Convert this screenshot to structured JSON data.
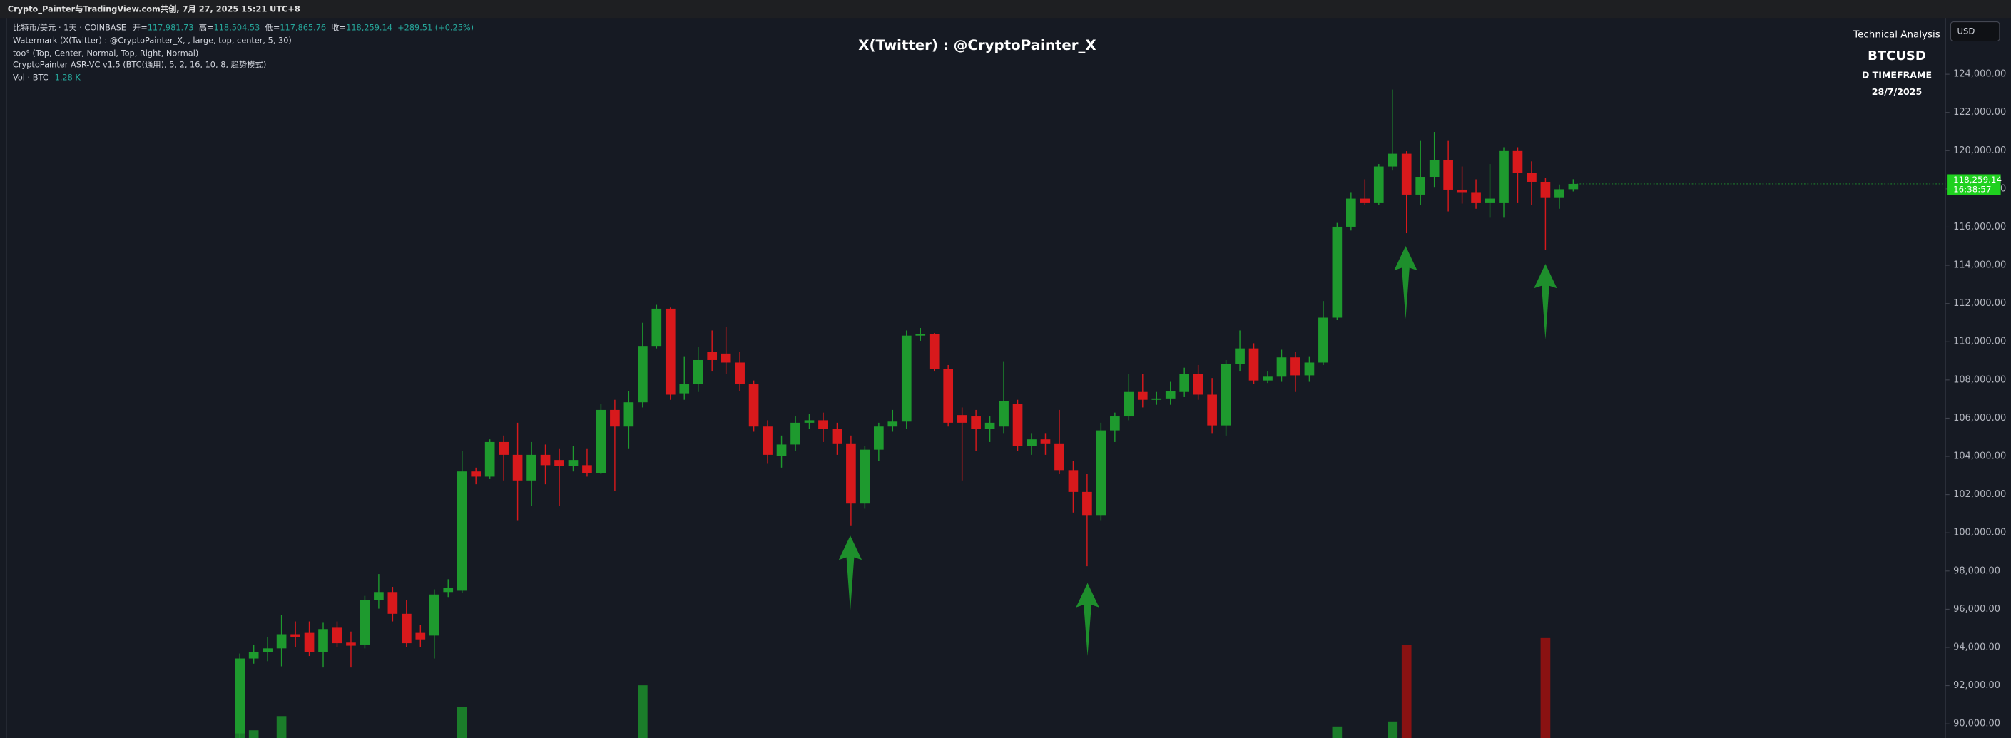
{
  "header": {
    "title": "Crypto_Painter与TradingView.com共创, 7月 27, 2025 15:21 UTC+8"
  },
  "legend": {
    "symbol": "比特币/美元 · 1天 · COINBASE",
    "open_label": "开=",
    "open": "117,981.73",
    "high_label": "高=",
    "high": "118,504.53",
    "low_label": "低=",
    "low": "117,865.76",
    "close_label": "收=",
    "close": "118,259.14",
    "change": "+289.51 (+0.25%)",
    "watermark": "Watermark (X(Twitter) : @CryptoPainter_X, , large, top, center, 5, 30)",
    "too": "too° (Top, Center, Normal, Top, Right, Normal)",
    "indicator": "CryptoPainter ASR-VC v1.5 (BTC(通用), 5, 2, 16, 10, 8, 趋势模式)",
    "volume_label": "Vol · BTC",
    "volume": "1.28 K"
  },
  "panel": {
    "heading": "Technical Analysis",
    "symbol": "BTCUSD",
    "timeframe": "D TIMEFRAME",
    "date": "28/7/2025"
  },
  "currency": "USD",
  "chart_data": {
    "type": "candlestick",
    "title": "X(Twitter) : @CryptoPainter_X",
    "up_color": "#1e9a2e",
    "down_color": "#d8191c",
    "volume_up_color": "#1b7d2a",
    "volume_down_color": "#8a1212",
    "grid": false,
    "ylim": [
      89260,
      126880
    ],
    "yticks": [
      {
        "value": 90000,
        "label": "90,000.00"
      },
      {
        "value": 92000,
        "label": "92,000.00"
      },
      {
        "value": 94000,
        "label": "94,000.00"
      },
      {
        "value": 96000,
        "label": "96,000.00"
      },
      {
        "value": 98000,
        "label": "98,000.00"
      },
      {
        "value": 100000,
        "label": "100,000.00"
      },
      {
        "value": 102000,
        "label": "102,000.00"
      },
      {
        "value": 104000,
        "label": "104,000.00"
      },
      {
        "value": 106000,
        "label": "106,000.00"
      },
      {
        "value": 108000,
        "label": "108,000.00"
      },
      {
        "value": 110000,
        "label": "110,000.00"
      },
      {
        "value": 112000,
        "label": "112,000.00"
      },
      {
        "value": 114000,
        "label": "114,000.00"
      },
      {
        "value": 116000,
        "label": "116,000.00"
      },
      {
        "value": 118000,
        "label": "118,000.00"
      },
      {
        "value": 120000,
        "label": "120,000.00"
      },
      {
        "value": 122000,
        "label": "122,000.00"
      },
      {
        "value": 124000,
        "label": "124,000.00"
      }
    ],
    "last_price": {
      "value": 118259.14,
      "label": "118,259.14",
      "countdown": "16:38:57"
    },
    "volume_lim": [
      0,
      30000
    ],
    "candles": {
      "open": [
        89500,
        93420,
        93750,
        93950,
        94690,
        94760,
        93750,
        95030,
        94250,
        94150,
        96500,
        96900,
        95760,
        94760,
        94620,
        96900,
        96970,
        103210,
        102940,
        104750,
        104080,
        102740,
        104080,
        103810,
        103480,
        103540,
        103140,
        106430,
        105560,
        106830,
        109780,
        111730,
        107300,
        107770,
        109450,
        109380,
        108910,
        107770,
        105560,
        104010,
        104620,
        105760,
        105890,
        105420,
        104680,
        101530,
        104350,
        105560,
        105820,
        110320,
        110390,
        108570,
        106160,
        106090,
        105420,
        105560,
        106760,
        104550,
        104890,
        104680,
        103280,
        102140,
        100930,
        105360,
        106090,
        107370,
        106960,
        107030,
        107370,
        108310,
        107230,
        105620,
        108840,
        109650,
        107970,
        108170,
        109180,
        108240,
        108910,
        111260,
        116020,
        117490,
        117290,
        119170,
        119840,
        117700,
        118630,
        119510,
        117960,
        117830,
        117290,
        117290,
        119980,
        118840,
        118370,
        117560,
        117981.73
      ],
      "high": [
        93680,
        94150,
        94560,
        95700,
        95360,
        95360,
        95290,
        95360,
        94830,
        96700,
        97840,
        97170,
        96500,
        95160,
        97040,
        97570,
        104280,
        103410,
        104890,
        105090,
        105760,
        104750,
        104620,
        104420,
        104550,
        104420,
        106760,
        106960,
        107430,
        110990,
        111930,
        111790,
        109240,
        109710,
        110590,
        110790,
        109450,
        107970,
        105890,
        105090,
        106090,
        106230,
        106290,
        105760,
        105090,
        104550,
        105760,
        106430,
        110590,
        110720,
        110450,
        108780,
        106560,
        106430,
        106090,
        108980,
        106960,
        105220,
        105220,
        106430,
        103750,
        103070,
        105760,
        106290,
        108310,
        108310,
        107370,
        107900,
        108640,
        108780,
        108100,
        109040,
        110590,
        109920,
        108440,
        109580,
        109450,
        109240,
        112130,
        116220,
        117830,
        118500,
        119300,
        123200,
        119970,
        120510,
        120980,
        120510,
        119170,
        118500,
        119300,
        120180,
        120180,
        119440,
        118570,
        118230,
        118504.53
      ],
      "low": [
        89200,
        93150,
        93280,
        93010,
        94020,
        93550,
        92950,
        94020,
        92950,
        93950,
        96030,
        95360,
        94020,
        94020,
        93420,
        96640,
        96840,
        102540,
        102810,
        102740,
        100660,
        101400,
        102540,
        101400,
        103210,
        102940,
        103070,
        102200,
        104420,
        106560,
        109650,
        106960,
        106960,
        107370,
        108440,
        108310,
        107430,
        105290,
        103610,
        103410,
        104280,
        105420,
        104750,
        104080,
        100390,
        101260,
        103750,
        105290,
        105420,
        110050,
        108440,
        105560,
        102740,
        104280,
        104750,
        105220,
        104280,
        104080,
        104080,
        103070,
        101060,
        98250,
        100660,
        104750,
        105890,
        106560,
        106700,
        106700,
        107100,
        106960,
        105220,
        105090,
        108440,
        107770,
        107840,
        107900,
        107370,
        107900,
        108780,
        111130,
        115820,
        117160,
        117160,
        118960,
        115680,
        117160,
        118100,
        116820,
        117230,
        116960,
        116490,
        116490,
        117290,
        117160,
        114810,
        116960,
        117865.76
      ],
      "close": [
        93420,
        93750,
        93950,
        94690,
        94560,
        93750,
        94960,
        94220,
        94090,
        96500,
        96900,
        95760,
        94220,
        94420,
        96770,
        97110,
        103210,
        102940,
        104750,
        104080,
        102740,
        104080,
        103540,
        103480,
        103810,
        103140,
        106430,
        105560,
        106830,
        109780,
        111730,
        107230,
        107770,
        109040,
        109040,
        108910,
        107770,
        105560,
        104080,
        104620,
        105760,
        105890,
        105420,
        104680,
        101530,
        104350,
        105560,
        105820,
        110320,
        110390,
        108570,
        105760,
        105760,
        105420,
        105760,
        106900,
        104550,
        104890,
        104680,
        103280,
        102140,
        100930,
        105360,
        106090,
        107370,
        106960,
        107030,
        107430,
        108310,
        107230,
        105620,
        108840,
        109650,
        107970,
        108170,
        109180,
        108240,
        108910,
        111260,
        116020,
        117490,
        117290,
        119170,
        119840,
        117700,
        118630,
        119510,
        117960,
        117830,
        117290,
        117490,
        119980,
        118840,
        118370,
        117560,
        117980,
        118259.14
      ]
    },
    "volume": [
      12000,
      2000,
      null,
      5700,
      null,
      null,
      null,
      null,
      null,
      null,
      null,
      null,
      null,
      null,
      null,
      null,
      8000,
      null,
      null,
      null,
      null,
      null,
      null,
      null,
      null,
      null,
      null,
      null,
      null,
      13700,
      null,
      null,
      null,
      null,
      null,
      null,
      null,
      null,
      null,
      null,
      null,
      null,
      null,
      null,
      null,
      null,
      null,
      null,
      null,
      null,
      null,
      null,
      null,
      null,
      null,
      null,
      null,
      null,
      null,
      null,
      null,
      null,
      null,
      null,
      null,
      null,
      null,
      null,
      null,
      null,
      null,
      null,
      null,
      null,
      null,
      null,
      null,
      null,
      null,
      3000,
      null,
      null,
      null,
      4300,
      24300,
      null,
      null,
      null,
      null,
      null,
      null,
      null,
      null,
      null,
      26000,
      null,
      null
    ]
  }
}
